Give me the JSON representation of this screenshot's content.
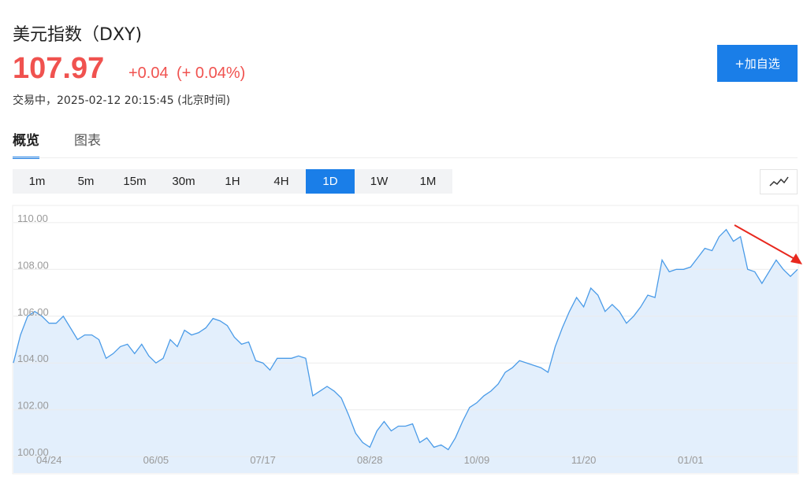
{
  "header": {
    "title": "美元指数（DXY)",
    "price": "107.97",
    "change": "+0.04",
    "change_percent": "(+ 0.04%)",
    "status": "交易中，2025-02-12 20:15:45 (北京时间)",
    "add_button": "+加自选"
  },
  "tabs": [
    "概览",
    "图表"
  ],
  "intervals": [
    "1m",
    "5m",
    "15m",
    "30m",
    "1H",
    "4H",
    "1D",
    "1W",
    "1M"
  ],
  "chart_data": {
    "type": "line",
    "categories": [
      null,
      null,
      null,
      null,
      null,
      "04/24",
      null,
      null,
      null,
      null,
      null,
      null,
      null,
      null,
      null,
      null,
      null,
      null,
      null,
      null,
      "06/05",
      null,
      null,
      null,
      null,
      null,
      null,
      null,
      null,
      null,
      null,
      null,
      null,
      null,
      null,
      "07/17",
      null,
      null,
      null,
      null,
      null,
      null,
      null,
      null,
      null,
      null,
      null,
      null,
      null,
      null,
      "08/28",
      null,
      null,
      null,
      null,
      null,
      null,
      null,
      null,
      null,
      null,
      null,
      null,
      null,
      null,
      "10/09",
      null,
      null,
      null,
      null,
      null,
      null,
      null,
      null,
      null,
      null,
      null,
      null,
      null,
      null,
      "11/20",
      null,
      null,
      null,
      null,
      null,
      null,
      null,
      null,
      null,
      null,
      null,
      null,
      null,
      null,
      "01/01",
      null,
      null,
      null,
      null,
      null,
      null,
      null,
      null,
      null,
      null,
      null,
      null,
      null,
      null,
      null
    ],
    "values": [
      104.0,
      105.2,
      106.0,
      106.2,
      106.0,
      105.7,
      105.7,
      106.0,
      105.5,
      105.0,
      105.2,
      105.2,
      105.0,
      104.2,
      104.4,
      104.7,
      104.8,
      104.4,
      104.8,
      104.3,
      104.0,
      104.2,
      105.0,
      104.7,
      105.4,
      105.2,
      105.3,
      105.5,
      105.9,
      105.8,
      105.6,
      105.1,
      104.8,
      104.9,
      104.1,
      104.0,
      103.7,
      104.2,
      104.2,
      104.2,
      104.3,
      104.2,
      102.6,
      102.8,
      103.0,
      102.8,
      102.5,
      101.8,
      101.0,
      100.6,
      100.4,
      101.1,
      101.5,
      101.1,
      101.3,
      101.3,
      101.4,
      100.6,
      100.8,
      100.4,
      100.5,
      100.3,
      100.8,
      101.5,
      102.1,
      102.3,
      102.6,
      102.8,
      103.1,
      103.6,
      103.8,
      104.1,
      104.0,
      103.9,
      103.8,
      103.6,
      104.7,
      105.5,
      106.2,
      106.8,
      106.4,
      107.2,
      106.9,
      106.2,
      106.5,
      106.2,
      105.7,
      106.0,
      106.4,
      106.9,
      106.8,
      108.4,
      107.9,
      108.0,
      108.0,
      108.1,
      108.5,
      108.9,
      108.8,
      109.4,
      109.7,
      109.2,
      109.4,
      108.0,
      107.9,
      107.4,
      107.9,
      108.4,
      108.0,
      107.7,
      108.0
    ],
    "color": "#4a9be8",
    "fill": "#e3effc",
    "ylim": [
      99.3,
      110.7
    ],
    "yticks": [
      {
        "value": 100,
        "label": "100.00"
      },
      {
        "value": 102,
        "label": "102.00"
      },
      {
        "value": 104,
        "label": "104.00"
      },
      {
        "value": 106,
        "label": "106.00"
      },
      {
        "value": 108,
        "label": "108.00"
      },
      {
        "value": 110,
        "label": "110.00"
      }
    ],
    "grid": true
  }
}
